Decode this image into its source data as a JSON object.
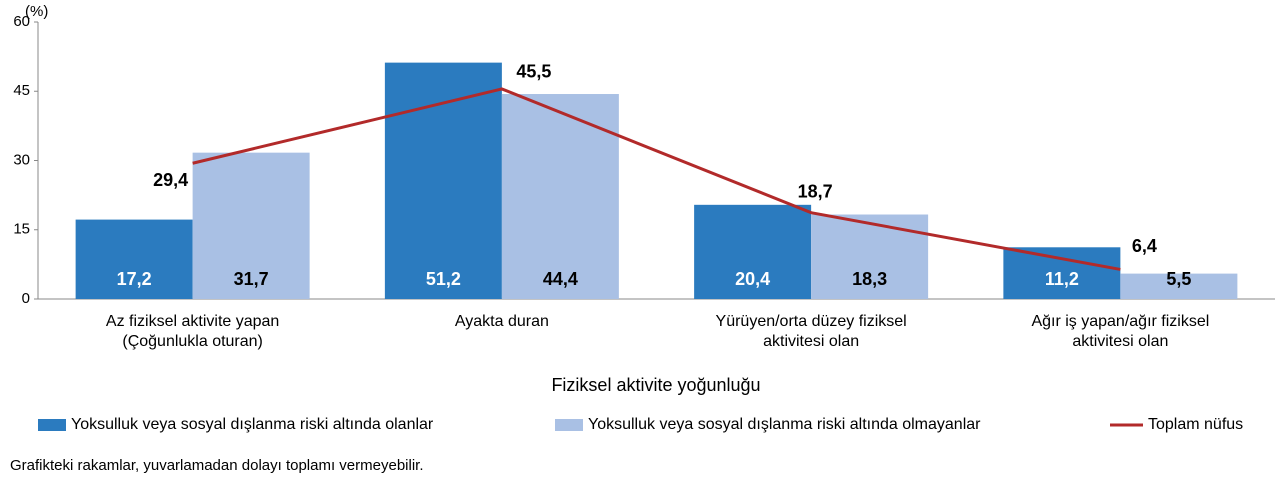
{
  "chart_data": {
    "type": "bar",
    "y_unit": "(%)",
    "x_axis_title": "Fiziksel aktivite yoğunluğu",
    "note": "Grafikteki rakamlar, yuvarlamadan dolayı toplamı vermeyebilir.",
    "categories": [
      "Az fiziksel aktivite yapan\n(Çoğunlukla oturan)",
      "Ayakta duran",
      "Yürüyen/orta düzey fiziksel\naktivitesi olan",
      "Ağır iş yapan/ağır fiziksel\naktivitesi olan"
    ],
    "series": [
      {
        "name": "Yoksulluk veya sosyal dışlanma riski altında olanlar",
        "color": "#2b7bbf",
        "type": "bar",
        "values": [
          17.2,
          51.2,
          20.4,
          11.2
        ],
        "value_labels": [
          "17,2",
          "51,2",
          "20,4",
          "11,2"
        ]
      },
      {
        "name": "Yoksulluk veya sosyal dışlanma riski altında olmayanlar",
        "color": "#a9c0e4",
        "type": "bar",
        "values": [
          31.7,
          44.4,
          18.3,
          5.5
        ],
        "value_labels": [
          "31,7",
          "44,4",
          "18,3",
          "5,5"
        ]
      },
      {
        "name": "Toplam nüfus",
        "color": "#b22a2a",
        "type": "line",
        "values": [
          29.4,
          45.5,
          18.7,
          6.4
        ],
        "value_labels": [
          "29,4",
          "45,5",
          "18,7",
          "6,4"
        ]
      }
    ],
    "ylim": [
      0,
      60
    ],
    "yticks": [
      0,
      15,
      30,
      45,
      60
    ],
    "grid": false
  }
}
